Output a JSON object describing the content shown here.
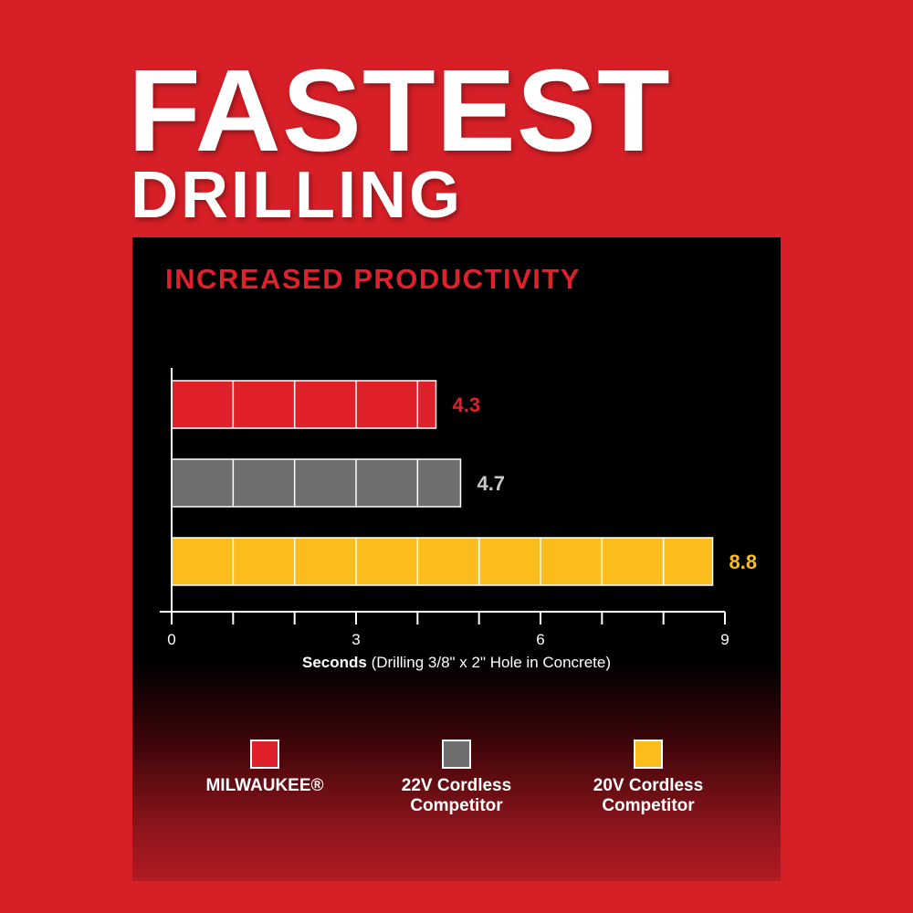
{
  "headline": {
    "line1": "FASTEST",
    "line2": "DRILLING"
  },
  "chart_data": {
    "type": "bar",
    "orientation": "horizontal",
    "title": "INCREASED PRODUCTIVITY",
    "categories": [
      "MILWAUKEE®",
      "22V Cordless Competitor",
      "20V Cordless Competitor"
    ],
    "values": [
      4.3,
      4.7,
      8.8
    ],
    "data_labels": [
      "4.3",
      "4.7",
      "8.8"
    ],
    "colors": [
      "#e0202a",
      "#6e6e6e",
      "#fbbd1b"
    ],
    "label_colors": [
      "#e0202a",
      "#c8c8c8",
      "#fbbd1b"
    ],
    "xlabel_bold": "Seconds",
    "xlabel_rest": " (Drilling 3/8\" x 2\" Hole in Concrete)",
    "xlim": [
      0,
      9
    ],
    "xticks": [
      0,
      3,
      6,
      9
    ],
    "minor_ticks_step": 1,
    "grid": false,
    "legend_position": "bottom"
  },
  "legend": [
    {
      "label": "MILWAUKEE®",
      "color": "#e0202a"
    },
    {
      "label": "22V Cordless\nCompetitor",
      "color": "#6e6e6e"
    },
    {
      "label": "20V Cordless\nCompetitor",
      "color": "#fbbd1b"
    }
  ]
}
